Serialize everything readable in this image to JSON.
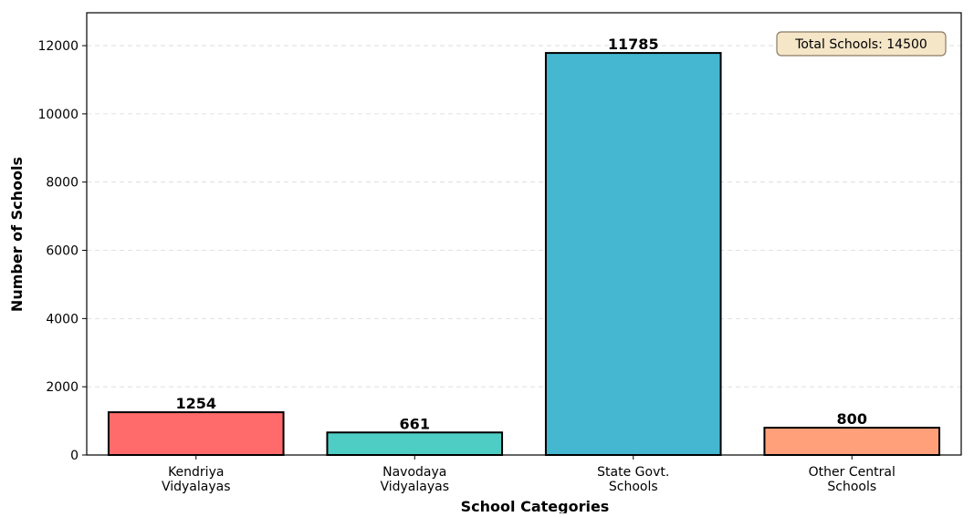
{
  "chart_data": {
    "type": "bar",
    "categories": [
      [
        "Kendriya",
        "Vidyalayas"
      ],
      [
        "Navodaya",
        "Vidyalayas"
      ],
      [
        "State Govt.",
        "Schools"
      ],
      [
        "Other Central",
        "Schools"
      ]
    ],
    "values": [
      1254,
      661,
      11785,
      800
    ],
    "value_labels": [
      "1254",
      "661",
      "11785",
      "800"
    ],
    "colors": [
      "#ff6b6b",
      "#4ecdc4",
      "#45b7d1",
      "#ffa07a"
    ],
    "xlabel": "School Categories",
    "ylabel": "Number of Schools",
    "ylim": [
      0,
      12963.5
    ],
    "yticks": [
      0,
      2000,
      4000,
      6000,
      8000,
      10000,
      12000
    ],
    "ytick_labels": [
      "0",
      "2000",
      "4000",
      "6000",
      "8000",
      "10000",
      "12000"
    ],
    "grid": true,
    "annotation": {
      "text": "Total Schools: 14500",
      "placement": "top-right"
    }
  }
}
